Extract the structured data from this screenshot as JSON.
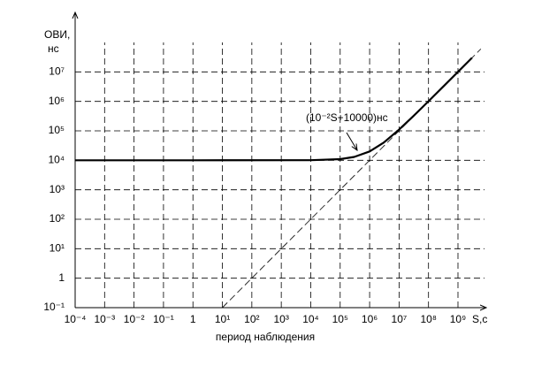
{
  "chart_data": {
    "type": "line",
    "ylabel": [
      "ОВИ,",
      "нс"
    ],
    "xlabel": "период наблюдения",
    "xunit": "S,с",
    "annotation": "(10⁻²S+10000)нс",
    "log_x": true,
    "log_y": true,
    "grid": true,
    "xlim": [
      0.0001,
      1000000000
    ],
    "ylim": [
      0.1,
      100000000
    ],
    "xticks": [
      {
        "value": 0.0001,
        "label": "10⁻⁴"
      },
      {
        "value": 0.001,
        "label": "10⁻³"
      },
      {
        "value": 0.01,
        "label": "10⁻²"
      },
      {
        "value": 0.1,
        "label": "10⁻¹"
      },
      1,
      {
        "value": 10,
        "label": "10¹"
      },
      {
        "value": 100,
        "label": "10²"
      },
      {
        "value": 1000,
        "label": "10³"
      },
      {
        "value": 10000,
        "label": "10⁴"
      },
      {
        "value": 100000,
        "label": "10⁵"
      },
      {
        "value": 1000000,
        "label": "10⁶"
      },
      {
        "value": 10000000,
        "label": "10⁷"
      },
      {
        "value": 100000000,
        "label": "10⁸"
      },
      {
        "value": 1000000000,
        "label": "10⁹"
      }
    ],
    "yticks": [
      {
        "value": 0.1,
        "label": "10⁻¹"
      },
      1,
      {
        "value": 10,
        "label": "10¹"
      },
      {
        "value": 100,
        "label": "10²"
      },
      {
        "value": 1000,
        "label": "10³"
      },
      {
        "value": 10000,
        "label": "10⁴"
      },
      {
        "value": 100000,
        "label": "10⁵"
      },
      {
        "value": 1000000,
        "label": "10⁶"
      },
      {
        "value": 10000000,
        "label": "10⁷"
      }
    ],
    "series": [
      {
        "color": "#000000",
        "style": "solid",
        "x": [
          0.0001,
          1,
          10000,
          100000,
          300000,
          1000000,
          3000000,
          10000000,
          30000000,
          100000000,
          300000000,
          1000000000,
          3000000000
        ],
        "values": [
          10000,
          10000,
          10100,
          11000,
          13000,
          20000,
          40000,
          110000,
          310000,
          1010000,
          3010000,
          10010000,
          30010000
        ]
      },
      {
        "color": "#000000",
        "style": "dashed",
        "x": [
          10,
          6000000000
        ],
        "values": [
          0.1,
          60000000
        ]
      }
    ]
  }
}
